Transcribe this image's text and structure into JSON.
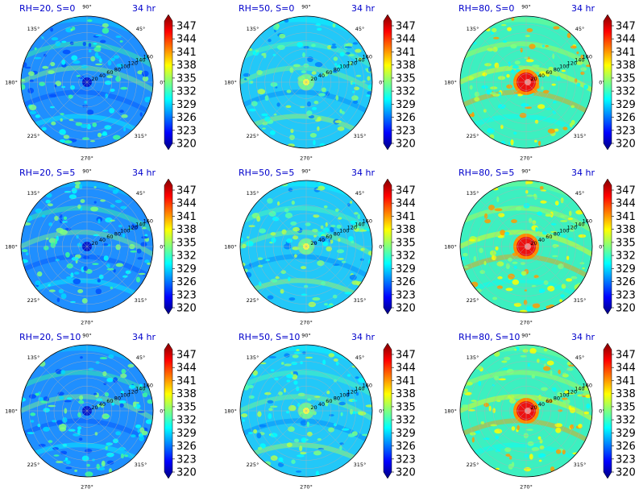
{
  "chart_data": [
    {
      "type": "heatmap",
      "subtype": "polar-contour",
      "title": "RH=20, S=0",
      "time_label": "34 hr",
      "colormap": "jet",
      "dominant": "blue",
      "hotspot": "none"
    },
    {
      "type": "heatmap",
      "subtype": "polar-contour",
      "title": "RH=50, S=0",
      "time_label": "34 hr",
      "colormap": "jet",
      "dominant": "cyan",
      "hotspot": "weak"
    },
    {
      "type": "heatmap",
      "subtype": "polar-contour",
      "title": "RH=80, S=0",
      "time_label": "34 hr",
      "colormap": "jet",
      "dominant": "green",
      "hotspot": "strong"
    },
    {
      "type": "heatmap",
      "subtype": "polar-contour",
      "title": "RH=20, S=5",
      "time_label": "34 hr",
      "colormap": "jet",
      "dominant": "blue",
      "hotspot": "none"
    },
    {
      "type": "heatmap",
      "subtype": "polar-contour",
      "title": "RH=50, S=5",
      "time_label": "34 hr",
      "colormap": "jet",
      "dominant": "cyan",
      "hotspot": "weak"
    },
    {
      "type": "heatmap",
      "subtype": "polar-contour",
      "title": "RH=80, S=5",
      "time_label": "34 hr",
      "colormap": "jet",
      "dominant": "green",
      "hotspot": "strong"
    },
    {
      "type": "heatmap",
      "subtype": "polar-contour",
      "title": "RH=20, S=10",
      "time_label": "34 hr",
      "colormap": "jet",
      "dominant": "blue",
      "hotspot": "none"
    },
    {
      "type": "heatmap",
      "subtype": "polar-contour",
      "title": "RH=50, S=10",
      "time_label": "34 hr",
      "colormap": "jet",
      "dominant": "cyan",
      "hotspot": "weak"
    },
    {
      "type": "heatmap",
      "subtype": "polar-contour",
      "title": "RH=80, S=10",
      "time_label": "34 hr",
      "colormap": "jet",
      "dominant": "green",
      "hotspot": "strong"
    }
  ],
  "angular_ticks": [
    "0°",
    "45°",
    "90°",
    "135°",
    "180°",
    "225°",
    "270°",
    "315°"
  ],
  "radial_ticks": [
    "20",
    "40",
    "60",
    "80",
    "100",
    "120",
    "140",
    "160"
  ],
  "colorbar_ticks": [
    "320",
    "323",
    "326",
    "329",
    "332",
    "335",
    "338",
    "341",
    "344",
    "347"
  ],
  "colors": {
    "title": "#0000cc",
    "jet": [
      "#00007f",
      "#0000ff",
      "#007fff",
      "#00ffff",
      "#7fff7f",
      "#ffff00",
      "#ff7f00",
      "#ff0000",
      "#7f0000"
    ]
  }
}
